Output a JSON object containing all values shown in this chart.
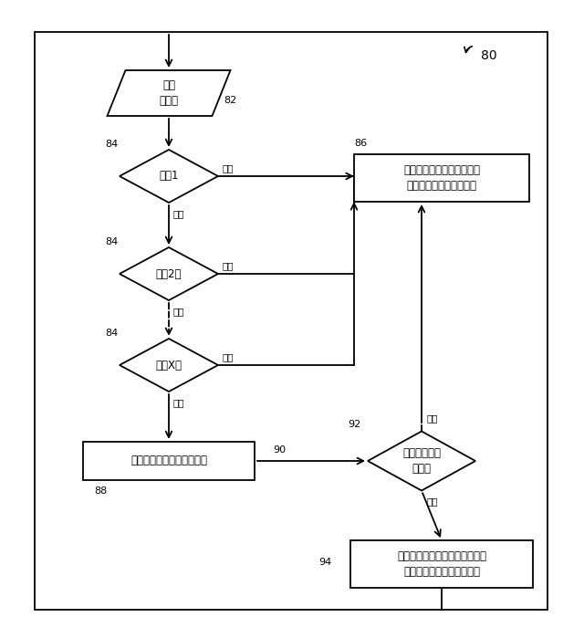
{
  "bg_color": "#ffffff",
  "fig_width": 6.4,
  "fig_height": 6.99,
  "label_80": "80",
  "label_82": "82",
  "label_84a": "84",
  "label_84b": "84",
  "label_84c": "84",
  "label_86": "86",
  "label_88": "88",
  "label_90": "90",
  "label_92": "92",
  "label_94": "94",
  "node_82_text": "治療\nデータ",
  "node_84a_text": "基準1",
  "node_84b_text": "基準2，",
  "node_84c_text": "基準X，",
  "node_86_text": "治療が容認可能であったこ\nとを示す画面を表示する",
  "node_88_text": "分析し、スコアを生成する",
  "node_90_text": "スコアを評価\nする？",
  "node_94_text": "治療が期待通りに進まなかった\nことを示す画面を表示する",
  "pass_label": "合格",
  "fail_label": "失敗",
  "lw": 1.3
}
